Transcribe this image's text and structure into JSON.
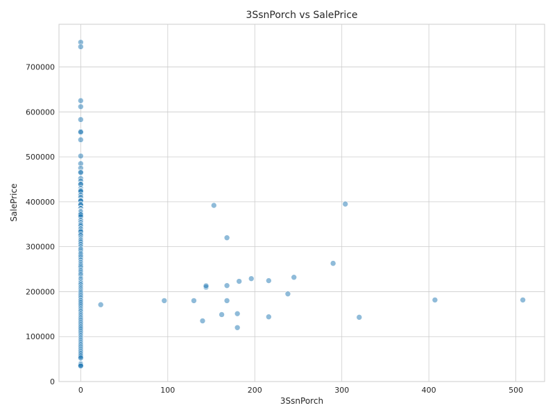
{
  "chart_data": {
    "type": "scatter",
    "title": "3SsnPorch vs SalePrice",
    "xlabel": "3SsnPorch",
    "ylabel": "SalePrice",
    "xlim": [
      -25,
      533
    ],
    "ylim": [
      0,
      795000
    ],
    "x_ticks": [
      0,
      100,
      200,
      300,
      400,
      500
    ],
    "y_ticks": [
      0,
      100000,
      200000,
      300000,
      400000,
      500000,
      600000,
      700000
    ],
    "x_tick_labels": [
      "0",
      "100",
      "200",
      "300",
      "400",
      "500"
    ],
    "y_tick_labels": [
      "0",
      "100000",
      "200000",
      "300000",
      "400000",
      "500000",
      "600000",
      "700000"
    ],
    "grid": true,
    "legend": "none",
    "point_color": "#1f77b4",
    "series": [
      {
        "points": [
          [
            0,
            755000
          ],
          [
            0,
            745000
          ],
          [
            0,
            625000
          ],
          [
            0,
            611657
          ],
          [
            0,
            582933
          ],
          [
            0,
            556581
          ],
          [
            0,
            555000
          ],
          [
            0,
            538000
          ],
          [
            0,
            501837
          ],
          [
            0,
            485000
          ],
          [
            0,
            475000
          ],
          [
            0,
            466500
          ],
          [
            0,
            465000
          ],
          [
            0,
            451950
          ],
          [
            0,
            446261
          ],
          [
            0,
            440000
          ],
          [
            0,
            438780
          ],
          [
            0,
            430000
          ],
          [
            0,
            426000
          ],
          [
            0,
            424870
          ],
          [
            0,
            423000
          ],
          [
            0,
            415298
          ],
          [
            0,
            410000
          ],
          [
            0,
            403000
          ],
          [
            0,
            402861
          ],
          [
            0,
            402000
          ],
          [
            0,
            395192
          ],
          [
            0,
            394617
          ],
          [
            0,
            392500
          ],
          [
            0,
            386250
          ],
          [
            0,
            385000
          ],
          [
            0,
            381000
          ],
          [
            0,
            380000
          ],
          [
            0,
            378500
          ],
          [
            0,
            377500
          ],
          [
            0,
            377426
          ],
          [
            0,
            375000
          ],
          [
            0,
            372500
          ],
          [
            0,
            372402
          ],
          [
            0,
            370878
          ],
          [
            0,
            367294
          ],
          [
            0,
            359100
          ],
          [
            0,
            354000
          ],
          [
            0,
            350000
          ],
          [
            0,
            348000
          ],
          [
            0,
            345000
          ],
          [
            0,
            341000
          ],
          [
            0,
            340000
          ],
          [
            0,
            337500
          ],
          [
            0,
            335000
          ],
          [
            0,
            333168
          ],
          [
            0,
            328000
          ],
          [
            0,
            325000
          ],
          [
            0,
            320000
          ],
          [
            0,
            317000
          ],
          [
            0,
            315000
          ],
          [
            0,
            312500
          ],
          [
            0,
            310000
          ],
          [
            0,
            307000
          ],
          [
            0,
            305000
          ],
          [
            0,
            302000
          ],
          [
            0,
            300000
          ],
          [
            0,
            297000
          ],
          [
            0,
            295000
          ],
          [
            0,
            293077
          ],
          [
            0,
            290000
          ],
          [
            0,
            287090
          ],
          [
            0,
            285000
          ],
          [
            0,
            282922
          ],
          [
            0,
            280000
          ],
          [
            0,
            278000
          ],
          [
            0,
            275000
          ],
          [
            0,
            272000
          ],
          [
            0,
            270000
          ],
          [
            0,
            267000
          ],
          [
            0,
            265000
          ],
          [
            0,
            262500
          ],
          [
            0,
            260000
          ],
          [
            0,
            258000
          ],
          [
            0,
            255500
          ],
          [
            0,
            253293
          ],
          [
            0,
            250000
          ],
          [
            0,
            248000
          ],
          [
            0,
            245500
          ],
          [
            0,
            243000
          ],
          [
            0,
            240000
          ],
          [
            0,
            238000
          ],
          [
            0,
            235000
          ],
          [
            0,
            232000
          ],
          [
            0,
            230000
          ],
          [
            0,
            228500
          ],
          [
            0,
            226000
          ],
          [
            0,
            223500
          ],
          [
            0,
            221000
          ],
          [
            0,
            219500
          ],
          [
            0,
            217000
          ],
          [
            0,
            215000
          ],
          [
            0,
            212000
          ],
          [
            0,
            210000
          ],
          [
            0,
            207500
          ],
          [
            0,
            205000
          ],
          [
            0,
            202500
          ],
          [
            0,
            200000
          ],
          [
            0,
            197900
          ],
          [
            0,
            195000
          ],
          [
            0,
            192500
          ],
          [
            0,
            190000
          ],
          [
            0,
            187500
          ],
          [
            0,
            185000
          ],
          [
            0,
            182000
          ],
          [
            0,
            180000
          ],
          [
            0,
            177500
          ],
          [
            0,
            175000
          ],
          [
            0,
            172500
          ],
          [
            0,
            170000
          ],
          [
            0,
            167500
          ],
          [
            0,
            165000
          ],
          [
            0,
            162500
          ],
          [
            0,
            160000
          ],
          [
            0,
            157500
          ],
          [
            0,
            155000
          ],
          [
            0,
            152000
          ],
          [
            0,
            150000
          ],
          [
            0,
            147500
          ],
          [
            0,
            145000
          ],
          [
            0,
            142500
          ],
          [
            0,
            140000
          ],
          [
            0,
            137500
          ],
          [
            0,
            135000
          ],
          [
            0,
            132500
          ],
          [
            0,
            130000
          ],
          [
            0,
            127500
          ],
          [
            0,
            125000
          ],
          [
            0,
            122500
          ],
          [
            0,
            120000
          ],
          [
            0,
            117500
          ],
          [
            0,
            115000
          ],
          [
            0,
            112500
          ],
          [
            0,
            110000
          ],
          [
            0,
            107500
          ],
          [
            0,
            105000
          ],
          [
            0,
            102500
          ],
          [
            0,
            100000
          ],
          [
            0,
            97500
          ],
          [
            0,
            95000
          ],
          [
            0,
            92500
          ],
          [
            0,
            90000
          ],
          [
            0,
            87500
          ],
          [
            0,
            85000
          ],
          [
            0,
            82500
          ],
          [
            0,
            80000
          ],
          [
            0,
            77500
          ],
          [
            0,
            75000
          ],
          [
            0,
            72500
          ],
          [
            0,
            70000
          ],
          [
            0,
            67500
          ],
          [
            0,
            65000
          ],
          [
            0,
            62500
          ],
          [
            0,
            60000
          ],
          [
            0,
            57500
          ],
          [
            0,
            55000
          ],
          [
            0,
            52500
          ],
          [
            0,
            40000
          ],
          [
            0,
            37900
          ],
          [
            0,
            35311
          ],
          [
            0,
            34900
          ],
          [
            23,
            171000
          ],
          [
            96,
            180000
          ],
          [
            130,
            180000
          ],
          [
            140,
            135000
          ],
          [
            144,
            210000
          ],
          [
            144,
            213000
          ],
          [
            153,
            392000
          ],
          [
            162,
            149000
          ],
          [
            168,
            320000
          ],
          [
            168,
            213500
          ],
          [
            168,
            180000
          ],
          [
            180,
            151000
          ],
          [
            180,
            120000
          ],
          [
            182,
            223000
          ],
          [
            196,
            229000
          ],
          [
            216,
            224500
          ],
          [
            216,
            144000
          ],
          [
            238,
            195000
          ],
          [
            245,
            232000
          ],
          [
            290,
            263000
          ],
          [
            304,
            395000
          ],
          [
            320,
            143000
          ],
          [
            407,
            181500
          ],
          [
            508,
            181500
          ]
        ]
      }
    ]
  }
}
